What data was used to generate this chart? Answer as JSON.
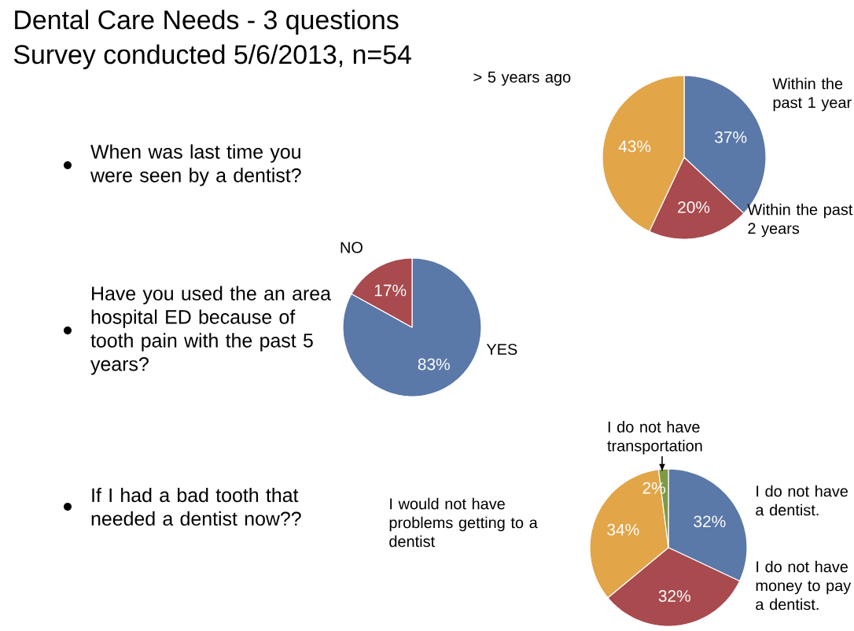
{
  "chart_data": [
    {
      "type": "pie",
      "title": "Dental Care Needs - 3 questions",
      "subtitle": "Survey conducted 5/6/2013, n=54",
      "annotations": [
        "When was last time you were seen by a dentist?"
      ],
      "categories": [
        "Within the past 1 year",
        "Within the past 2 years",
        "> 5 years ago"
      ],
      "values": [
        37,
        20,
        43
      ],
      "value_labels": [
        "37%",
        "20%",
        "43%"
      ],
      "colors": [
        "#5a78a8",
        "#a84a4e",
        "#e2a548"
      ]
    },
    {
      "type": "pie",
      "annotations": [
        "Have you used the an area hospital ED because of tooth pain with the past 5 years?"
      ],
      "categories": [
        "YES",
        "NO"
      ],
      "values": [
        83,
        17
      ],
      "value_labels": [
        "83%",
        "17%"
      ],
      "colors": [
        "#5a78a8",
        "#a84a4e"
      ]
    },
    {
      "type": "pie",
      "annotations": [
        "If I had a bad tooth that needed a dentist now??"
      ],
      "categories": [
        "I do not have a dentist.",
        "I do not have money to pay a dentist.",
        "I would not have problems getting to a dentist",
        "I do not have transportation"
      ],
      "values": [
        32,
        32,
        34,
        2
      ],
      "value_labels": [
        "32%",
        "32%",
        "34%",
        "2%"
      ],
      "colors": [
        "#5a78a8",
        "#a84a4e",
        "#e2a548",
        "#7f9a45"
      ]
    }
  ]
}
